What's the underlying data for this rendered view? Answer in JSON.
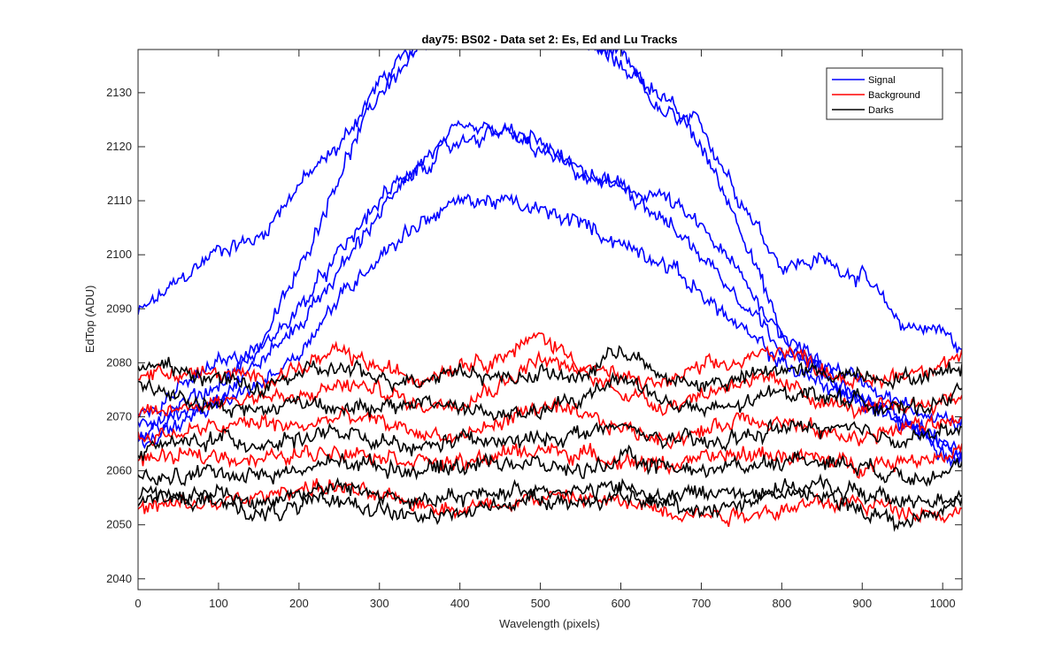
{
  "chart_data": {
    "type": "line",
    "title": "day75: BS02 - Data set 2: Es, Ed and Lu Tracks",
    "xlabel": "Wavelength (pixels)",
    "ylabel": "EdTop (ADU)",
    "xlim": [
      0,
      1024
    ],
    "ylim": [
      2038,
      2138
    ],
    "xticks": [
      0,
      100,
      200,
      300,
      400,
      500,
      600,
      700,
      800,
      900,
      1000
    ],
    "yticks": [
      2040,
      2050,
      2060,
      2070,
      2080,
      2090,
      2100,
      2110,
      2120,
      2130
    ],
    "grid": false,
    "legend_position": "top-right",
    "colors": {
      "Signal": "#0000ff",
      "Background": "#ff0000",
      "Darks": "#000000"
    },
    "groups": [
      {
        "name": "Signal",
        "color": "#0000ff",
        "series": [
          {
            "x": [
              0,
              100,
              150,
              200,
              250,
              300,
              350,
              400,
              450,
              500,
              550,
              600,
              650,
              700,
              750,
              800,
              850,
              900,
              950,
              1000,
              1024
            ],
            "y": [
              2089,
              2101,
              2103,
              2113,
              2120,
              2132,
              2139,
              2142,
              2143,
              2141,
              2139,
              2137,
              2126,
              2124,
              2110,
              2098,
              2099,
              2096,
              2087,
              2086,
              2082
            ]
          },
          {
            "x": [
              0,
              100,
              150,
              200,
              250,
              300,
              350,
              400,
              450,
              500,
              550,
              600,
              650,
              700,
              750,
              800,
              850,
              900,
              950,
              1000,
              1024
            ],
            "y": [
              2070,
              2080,
              2083,
              2097,
              2115,
              2130,
              2138,
              2142,
              2144,
              2142,
              2140,
              2135,
              2130,
              2120,
              2105,
              2085,
              2080,
              2077,
              2072,
              2070,
              2068
            ]
          },
          {
            "x": [
              0,
              100,
              150,
              200,
              250,
              300,
              350,
              400,
              450,
              500,
              550,
              600,
              650,
              700,
              750,
              800,
              850,
              900,
              950,
              1000,
              1024
            ],
            "y": [
              2068,
              2076,
              2082,
              2090,
              2100,
              2110,
              2117,
              2123,
              2123,
              2119,
              2115,
              2112,
              2111,
              2105,
              2096,
              2085,
              2078,
              2072,
              2070,
              2064,
              2062
            ]
          },
          {
            "x": [
              0,
              100,
              150,
              200,
              250,
              300,
              350,
              400,
              450,
              500,
              550,
              600,
              650,
              700,
              750,
              800,
              850,
              900,
              950,
              1000,
              1024
            ],
            "y": [
              2066,
              2074,
              2080,
              2087,
              2097,
              2108,
              2116,
              2121,
              2123,
              2121,
              2115,
              2113,
              2107,
              2100,
              2092,
              2083,
              2078,
              2073,
              2070,
              2065,
              2063
            ]
          },
          {
            "x": [
              0,
              100,
              150,
              200,
              250,
              300,
              350,
              400,
              450,
              500,
              550,
              600,
              650,
              700,
              750,
              800,
              850,
              900,
              950,
              1000,
              1024
            ],
            "y": [
              2065,
              2072,
              2076,
              2082,
              2092,
              2100,
              2106,
              2110,
              2110,
              2108,
              2106,
              2102,
              2099,
              2093,
              2086,
              2080,
              2076,
              2073,
              2069,
              2065,
              2063
            ]
          }
        ]
      },
      {
        "name": "Background",
        "color": "#ff0000",
        "series": [
          {
            "x": [
              0,
              100,
              150,
              200,
              250,
              300,
              350,
              400,
              450,
              500,
              550,
              600,
              650,
              700,
              750,
              800,
              850,
              900,
              950,
              1000,
              1024
            ],
            "y": [
              2078,
              2078,
              2077,
              2079,
              2082,
              2079,
              2077,
              2080,
              2081,
              2085,
              2080,
              2077,
              2076,
              2079,
              2080,
              2083,
              2079,
              2076,
              2078,
              2080,
              2081
            ]
          },
          {
            "x": [
              0,
              100,
              150,
              200,
              250,
              300,
              350,
              400,
              450,
              500,
              550,
              600,
              650,
              700,
              750,
              800,
              850,
              900,
              950,
              1000,
              1024
            ],
            "y": [
              2070,
              2073,
              2074,
              2073,
              2076,
              2075,
              2072,
              2073,
              2076,
              2081,
              2078,
              2075,
              2072,
              2074,
              2077,
              2076,
              2073,
              2071,
              2072,
              2073,
              2074
            ]
          },
          {
            "x": [
              0,
              100,
              150,
              200,
              250,
              300,
              350,
              400,
              450,
              500,
              550,
              600,
              650,
              700,
              750,
              800,
              850,
              900,
              950,
              1000,
              1024
            ],
            "y": [
              2066,
              2068,
              2069,
              2068,
              2070,
              2069,
              2067,
              2066,
              2069,
              2072,
              2070,
              2068,
              2066,
              2067,
              2070,
              2069,
              2067,
              2066,
              2068,
              2069,
              2070
            ]
          },
          {
            "x": [
              0,
              100,
              150,
              200,
              250,
              300,
              350,
              400,
              450,
              500,
              550,
              600,
              650,
              700,
              750,
              800,
              850,
              900,
              950,
              1000,
              1024
            ],
            "y": [
              2062,
              2063,
              2062,
              2063,
              2064,
              2063,
              2062,
              2061,
              2063,
              2064,
              2063,
              2062,
              2061,
              2062,
              2063,
              2063,
              2062,
              2061,
              2062,
              2063,
              2064
            ]
          },
          {
            "x": [
              0,
              100,
              150,
              200,
              250,
              300,
              350,
              400,
              450,
              500,
              550,
              600,
              650,
              700,
              750,
              800,
              850,
              900,
              950,
              1000,
              1024
            ],
            "y": [
              2053,
              2054,
              2055,
              2057,
              2057,
              2055,
              2054,
              2053,
              2054,
              2055,
              2055,
              2054,
              2053,
              2052,
              2052,
              2053,
              2054,
              2054,
              2053,
              2052,
              2052
            ]
          }
        ]
      },
      {
        "name": "Darks",
        "color": "#000000",
        "series": [
          {
            "x": [
              0,
              100,
              150,
              200,
              250,
              300,
              350,
              400,
              450,
              500,
              550,
              600,
              650,
              700,
              750,
              800,
              850,
              900,
              950,
              1000,
              1024
            ],
            "y": [
              2080,
              2077,
              2075,
              2078,
              2079,
              2077,
              2077,
              2079,
              2077,
              2078,
              2077,
              2083,
              2077,
              2076,
              2077,
              2079,
              2078,
              2078,
              2077,
              2078,
              2080
            ]
          },
          {
            "x": [
              0,
              100,
              150,
              200,
              250,
              300,
              350,
              400,
              450,
              500,
              550,
              600,
              650,
              700,
              750,
              800,
              850,
              900,
              950,
              1000,
              1024
            ],
            "y": [
              2076,
              2072,
              2071,
              2073,
              2072,
              2071,
              2073,
              2072,
              2070,
              2071,
              2073,
              2078,
              2073,
              2071,
              2072,
              2075,
              2074,
              2073,
              2071,
              2073,
              2075
            ]
          },
          {
            "x": [
              0,
              100,
              150,
              200,
              250,
              300,
              350,
              400,
              450,
              500,
              550,
              600,
              650,
              700,
              750,
              800,
              850,
              900,
              950,
              1000,
              1024
            ],
            "y": [
              2064,
              2066,
              2065,
              2066,
              2067,
              2065,
              2064,
              2066,
              2065,
              2066,
              2067,
              2068,
              2066,
              2065,
              2066,
              2068,
              2068,
              2067,
              2066,
              2067,
              2068
            ]
          },
          {
            "x": [
              0,
              100,
              150,
              200,
              250,
              300,
              350,
              400,
              450,
              500,
              550,
              600,
              650,
              700,
              750,
              800,
              850,
              900,
              950,
              1000,
              1024
            ],
            "y": [
              2058,
              2060,
              2059,
              2060,
              2062,
              2061,
              2060,
              2061,
              2062,
              2061,
              2060,
              2062,
              2061,
              2060,
              2061,
              2062,
              2062,
              2061,
              2059,
              2060,
              2061
            ]
          },
          {
            "x": [
              0,
              100,
              150,
              200,
              250,
              300,
              350,
              400,
              450,
              500,
              550,
              600,
              650,
              700,
              750,
              800,
              850,
              900,
              950,
              1000,
              1024
            ],
            "y": [
              2055,
              2056,
              2054,
              2056,
              2057,
              2056,
              2054,
              2055,
              2056,
              2057,
              2056,
              2057,
              2055,
              2056,
              2056,
              2057,
              2057,
              2056,
              2054,
              2055,
              2056
            ]
          },
          {
            "x": [
              0,
              100,
              150,
              200,
              250,
              300,
              350,
              400,
              450,
              500,
              550,
              600,
              650,
              700,
              750,
              800,
              850,
              900,
              950,
              1000,
              1024
            ],
            "y": [
              2055,
              2054,
              2052,
              2053,
              2055,
              2053,
              2051,
              2052,
              2054,
              2055,
              2054,
              2055,
              2054,
              2053,
              2054,
              2056,
              2055,
              2053,
              2050,
              2053,
              2055
            ]
          }
        ]
      }
    ]
  }
}
